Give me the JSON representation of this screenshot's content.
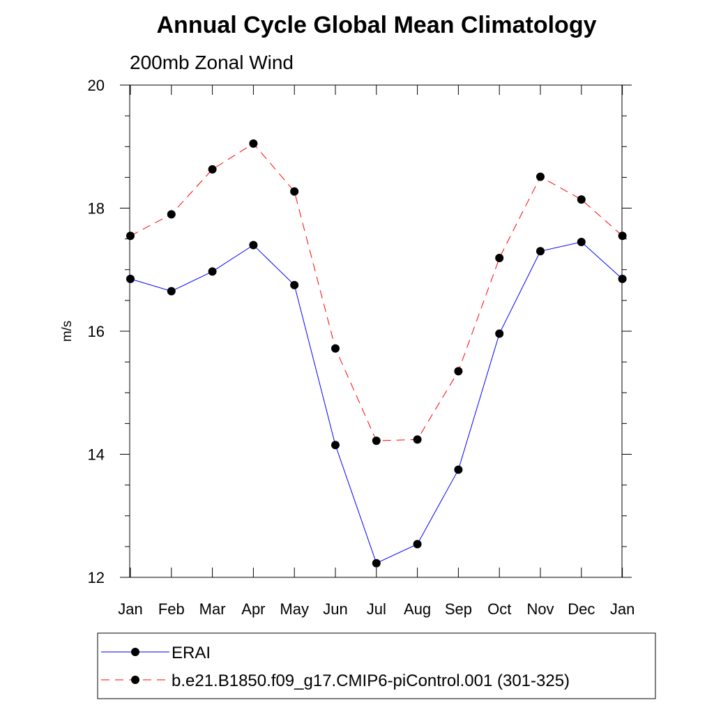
{
  "chart_data": {
    "type": "line",
    "title": "Annual Cycle Global Mean Climatology",
    "subtitle": "200mb Zonal Wind",
    "xlabel": "",
    "ylabel": "m/s",
    "categories": [
      "Jan",
      "Feb",
      "Mar",
      "Apr",
      "May",
      "Jun",
      "Jul",
      "Aug",
      "Sep",
      "Oct",
      "Nov",
      "Dec",
      "Jan"
    ],
    "ylim": [
      12,
      20
    ],
    "yticks": [
      "12",
      "14",
      "16",
      "18",
      "20"
    ],
    "grid": false,
    "legend_position": "bottom",
    "series": [
      {
        "name": "ERAI",
        "color": "#0000ff",
        "line_style": "solid",
        "marker": "circle",
        "values": [
          16.85,
          16.65,
          16.97,
          17.4,
          16.75,
          14.15,
          12.23,
          12.54,
          13.75,
          15.96,
          17.3,
          17.45,
          16.85
        ]
      },
      {
        "name": "b.e21.B1850.f09_g17.CMIP6-piControl.001 (301-325)",
        "color": "#ff0000",
        "line_style": "dashed",
        "marker": "circle",
        "values": [
          17.55,
          17.9,
          18.63,
          19.05,
          18.27,
          15.72,
          14.22,
          14.24,
          15.35,
          17.19,
          18.51,
          18.14,
          17.55
        ]
      }
    ]
  }
}
